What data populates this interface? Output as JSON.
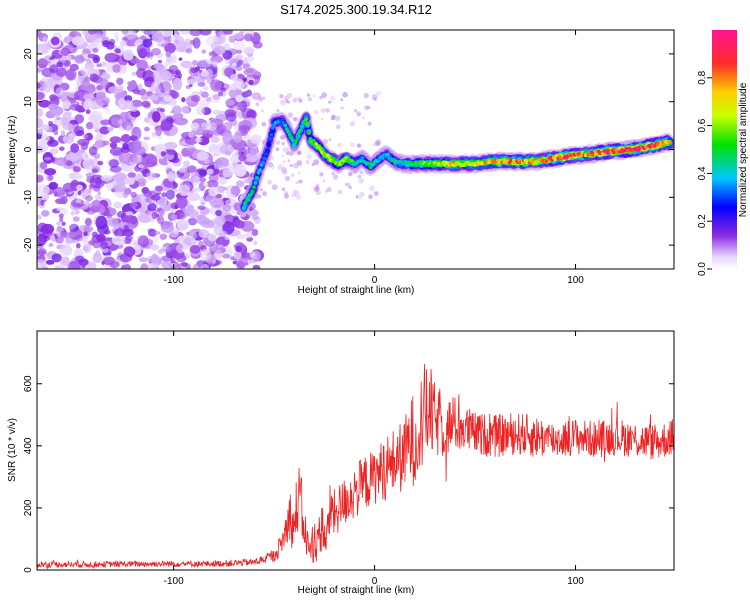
{
  "figure_title": "S174.2025.300.19.34.R12",
  "colors": {
    "snr_line": "#ee2222",
    "frame": "#000000"
  },
  "chart_data": [
    {
      "type": "heatmap",
      "title": "S174.2025.300.19.34.R12",
      "xlabel": "Height of straight line (km)",
      "ylabel": "Frequency (Hz)",
      "xlim": [
        -168,
        149
      ],
      "ylim": [
        -25,
        25
      ],
      "xticks": [
        -100,
        0,
        100
      ],
      "yticks": [
        -20,
        -10,
        0,
        10,
        20
      ],
      "colorbar": {
        "label": "Normalized spectral amplitude",
        "range": [
          0,
          1
        ],
        "ticks": [
          "0.0",
          "0.2",
          "0.4",
          "0.6",
          "0.8"
        ],
        "tick_values": [
          0.0,
          0.2,
          0.4,
          0.6,
          0.8
        ]
      },
      "noise_region_x": [
        -168,
        -58
      ],
      "ridge": [
        {
          "x": -65,
          "y": -12,
          "amp": 0.45
        },
        {
          "x": -60,
          "y": -8,
          "amp": 0.45
        },
        {
          "x": -57,
          "y": -4,
          "amp": 0.35
        },
        {
          "x": -54,
          "y": -1,
          "amp": 0.3
        },
        {
          "x": -52,
          "y": 2,
          "amp": 0.3
        },
        {
          "x": -50,
          "y": 5.5,
          "amp": 0.35
        },
        {
          "x": -46,
          "y": 6,
          "amp": 0.35
        },
        {
          "x": -43,
          "y": 4,
          "amp": 0.4
        },
        {
          "x": -40,
          "y": 1,
          "amp": 0.45
        },
        {
          "x": -38,
          "y": 3,
          "amp": 0.45
        },
        {
          "x": -34,
          "y": 6.5,
          "amp": 0.5
        },
        {
          "x": -32,
          "y": 2,
          "amp": 0.55
        },
        {
          "x": -29,
          "y": 1,
          "amp": 0.6
        },
        {
          "x": -25,
          "y": -1,
          "amp": 0.6
        },
        {
          "x": -22,
          "y": -2,
          "amp": 0.7
        },
        {
          "x": -18,
          "y": -3,
          "amp": 0.55
        },
        {
          "x": -14,
          "y": -2,
          "amp": 0.65
        },
        {
          "x": -10,
          "y": -3,
          "amp": 0.45
        },
        {
          "x": -6,
          "y": -2,
          "amp": 0.4
        },
        {
          "x": -2,
          "y": -3.5,
          "amp": 0.45
        },
        {
          "x": 2,
          "y": -2,
          "amp": 0.4
        },
        {
          "x": 6,
          "y": -1,
          "amp": 0.35
        },
        {
          "x": 10,
          "y": -2.5,
          "amp": 0.45
        },
        {
          "x": 14,
          "y": -3,
          "amp": 0.4
        },
        {
          "x": 18,
          "y": -3,
          "amp": 0.45
        },
        {
          "x": 24,
          "y": -3,
          "amp": 0.55
        },
        {
          "x": 32,
          "y": -3,
          "amp": 0.65
        },
        {
          "x": 40,
          "y": -3,
          "amp": 0.7
        },
        {
          "x": 50,
          "y": -3,
          "amp": 0.7
        },
        {
          "x": 60,
          "y": -2.5,
          "amp": 0.75
        },
        {
          "x": 70,
          "y": -2.5,
          "amp": 0.85
        },
        {
          "x": 80,
          "y": -2.5,
          "amp": 0.7
        },
        {
          "x": 95,
          "y": -1.5,
          "amp": 0.9
        },
        {
          "x": 105,
          "y": -1,
          "amp": 0.75
        },
        {
          "x": 115,
          "y": -0.5,
          "amp": 0.85
        },
        {
          "x": 128,
          "y": 0,
          "amp": 0.85
        },
        {
          "x": 138,
          "y": 0.8,
          "amp": 0.9
        },
        {
          "x": 147,
          "y": 1.5,
          "amp": 0.75
        }
      ]
    },
    {
      "type": "line",
      "xlabel": "Height of straight line (km)",
      "ylabel": "SNR (10 * v/v)",
      "xlim": [
        -168,
        149
      ],
      "ylim": [
        0,
        770
      ],
      "xticks": [
        -100,
        0,
        100
      ],
      "yticks": [
        0,
        200,
        400,
        600
      ],
      "series": [
        {
          "name": "SNR",
          "x": [
            -168,
            -140,
            -110,
            -80,
            -60,
            -50,
            -46,
            -42,
            -40,
            -38,
            -36,
            -34,
            -32,
            -30,
            -28,
            -26,
            -24,
            -22,
            -20,
            -15,
            -10,
            -5,
            0,
            5,
            10,
            15,
            18,
            20,
            22,
            25,
            27,
            30,
            35,
            40,
            50,
            60,
            70,
            80,
            90,
            100,
            110,
            120,
            130,
            140,
            149
          ],
          "mean": [
            18,
            18,
            20,
            20,
            25,
            45,
            90,
            180,
            120,
            250,
            180,
            100,
            60,
            110,
            80,
            150,
            90,
            200,
            180,
            220,
            250,
            280,
            300,
            330,
            350,
            370,
            420,
            420,
            460,
            500,
            520,
            480,
            460,
            470,
            440,
            430,
            440,
            430,
            420,
            430,
            420,
            430,
            420,
            410,
            430
          ],
          "amp": [
            10,
            10,
            10,
            10,
            12,
            20,
            40,
            80,
            100,
            120,
            100,
            60,
            40,
            90,
            60,
            80,
            60,
            90,
            80,
            80,
            90,
            90,
            90,
            100,
            110,
            120,
            150,
            150,
            160,
            170,
            160,
            120,
            100,
            90,
            70,
            70,
            70,
            70,
            60,
            60,
            60,
            60,
            60,
            60,
            60
          ]
        }
      ]
    }
  ]
}
